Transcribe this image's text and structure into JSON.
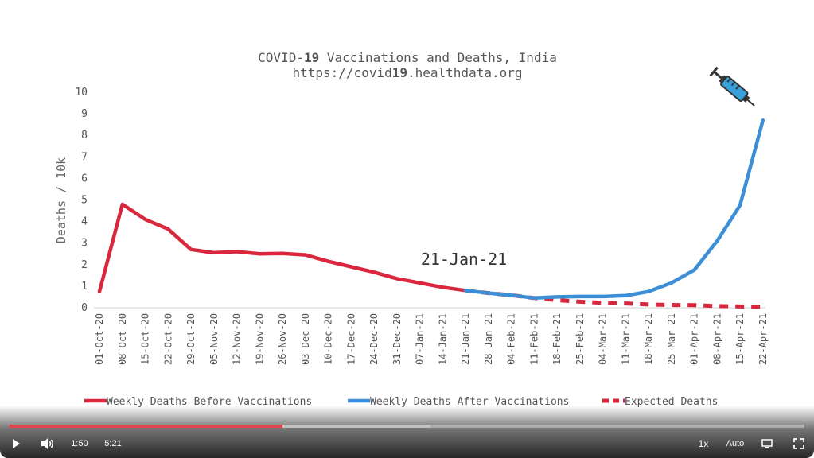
{
  "chart_data": {
    "type": "line",
    "title_line1_pre": "COVID-",
    "title_line1_bold": "19",
    "title_line1_post": " Vaccinations and Deaths, India",
    "title_line2_pre": "https://covid",
    "title_line2_bold": "19",
    "title_line2_post": ".healthdata.org",
    "ylabel": "Deaths / 10k",
    "ylim": [
      0,
      10
    ],
    "yticks": [
      "0",
      "1",
      "2",
      "3",
      "4",
      "5",
      "6",
      "7",
      "8",
      "9",
      "10"
    ],
    "categories": [
      "01-Oct-20",
      "08-Oct-20",
      "15-Oct-20",
      "22-Oct-20",
      "29-Oct-20",
      "05-Nov-20",
      "12-Nov-20",
      "19-Nov-20",
      "26-Nov-20",
      "03-Dec-20",
      "10-Dec-20",
      "17-Dec-20",
      "24-Dec-20",
      "31-Dec-20",
      "07-Jan-21",
      "14-Jan-21",
      "21-Jan-21",
      "28-Jan-21",
      "04-Feb-21",
      "11-Feb-21",
      "18-Feb-21",
      "25-Feb-21",
      "04-Mar-21",
      "11-Mar-21",
      "18-Mar-21",
      "25-Mar-21",
      "01-Apr-21",
      "08-Apr-21",
      "15-Apr-21",
      "22-Apr-21"
    ],
    "series": [
      {
        "name": "Weekly Deaths Before Vaccinations",
        "color": "#d9283d",
        "style": "solid",
        "values": [
          0.75,
          4.8,
          4.1,
          3.65,
          2.7,
          2.55,
          2.6,
          2.5,
          2.52,
          2.45,
          2.15,
          1.9,
          1.65,
          1.35,
          1.15,
          0.95,
          0.8,
          null,
          null,
          null,
          null,
          null,
          null,
          null,
          null,
          null,
          null,
          null,
          null,
          null
        ]
      },
      {
        "name": "Weekly Deaths After Vaccinations",
        "color": "#3c8fd6",
        "style": "solid",
        "values": [
          null,
          null,
          null,
          null,
          null,
          null,
          null,
          null,
          null,
          null,
          null,
          null,
          null,
          null,
          null,
          null,
          0.8,
          0.68,
          0.58,
          0.45,
          0.5,
          0.52,
          0.52,
          0.56,
          0.75,
          1.15,
          1.75,
          3.1,
          4.75,
          8.7
        ]
      },
      {
        "name": "Expected Deaths",
        "color": "#d9283d",
        "style": "dashed",
        "values": [
          null,
          null,
          null,
          null,
          null,
          null,
          null,
          null,
          null,
          null,
          null,
          null,
          null,
          null,
          null,
          null,
          0.8,
          0.68,
          0.58,
          0.45,
          0.35,
          0.28,
          0.23,
          0.2,
          0.15,
          0.13,
          0.12,
          0.08,
          0.06,
          0.04
        ]
      }
    ],
    "annotation": "21-Jan-21",
    "legend_position": "bottom",
    "grid": false,
    "icon": "syringe-icon"
  },
  "player": {
    "current_time": "1:50",
    "duration": "5:21",
    "speed": "1x",
    "quality": "Auto",
    "played_fraction": 0.343,
    "loaded_fraction": 0.53,
    "accent_color": "#e0454f"
  }
}
